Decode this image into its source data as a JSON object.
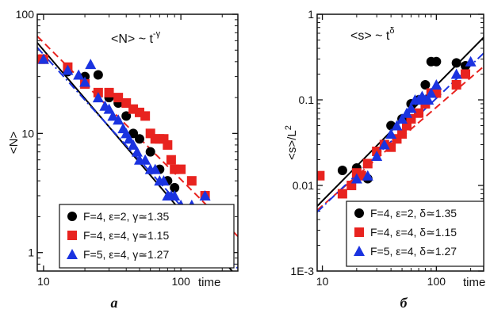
{
  "chart_data": [
    {
      "type": "scatter",
      "panel_label": "a",
      "xlabel": "time",
      "ylabel": "<N>",
      "xscale": "log",
      "yscale": "log",
      "xlim": [
        9,
        260
      ],
      "ylim": [
        0.7,
        100
      ],
      "xticks": [
        {
          "v": 10,
          "t": "10"
        },
        {
          "v": 100,
          "t": "100"
        }
      ],
      "yticks": [
        {
          "v": 1,
          "t": "1"
        },
        {
          "v": 10,
          "t": "10"
        },
        {
          "v": 100,
          "t": "100"
        }
      ],
      "annotation": {
        "base": "<N> ~ t",
        "sup": "-γ"
      },
      "legend_position": "bottom-left",
      "series": [
        {
          "name": "F=4, ε=2, γ≃1.35",
          "color": "#000000",
          "marker": "circle",
          "points": [
            [
              15,
              33
            ],
            [
              20,
              30
            ],
            [
              25,
              31
            ],
            [
              30,
              20
            ],
            [
              35,
              18
            ],
            [
              40,
              14
            ],
            [
              45,
              10
            ],
            [
              50,
              9
            ],
            [
              60,
              7
            ],
            [
              70,
              5
            ],
            [
              80,
              4
            ],
            [
              90,
              3.5
            ],
            [
              100,
              2
            ],
            [
              150,
              2
            ]
          ]
        },
        {
          "name": "F=4, ε=4, γ≃1.15",
          "color": "#e8231f",
          "marker": "square",
          "points": [
            [
              9.5,
              42
            ],
            [
              10,
              42
            ],
            [
              15,
              36
            ],
            [
              20,
              26
            ],
            [
              25,
              22
            ],
            [
              30,
              22
            ],
            [
              35,
              20
            ],
            [
              40,
              18
            ],
            [
              45,
              16
            ],
            [
              50,
              15
            ],
            [
              55,
              14
            ],
            [
              60,
              10
            ],
            [
              65,
              9
            ],
            [
              70,
              9
            ],
            [
              75,
              9
            ],
            [
              80,
              8
            ],
            [
              85,
              6
            ],
            [
              90,
              5
            ],
            [
              100,
              5
            ],
            [
              120,
              4
            ],
            [
              150,
              3
            ]
          ]
        },
        {
          "name": "F=5, ε=4, γ≃1.27",
          "color": "#1a33e0",
          "marker": "triangle",
          "points": [
            [
              10,
              42
            ],
            [
              15,
              34
            ],
            [
              18,
              31
            ],
            [
              20,
              27
            ],
            [
              22,
              38
            ],
            [
              25,
              20
            ],
            [
              28,
              17
            ],
            [
              30,
              16
            ],
            [
              32,
              14
            ],
            [
              35,
              13
            ],
            [
              38,
              11
            ],
            [
              40,
              10
            ],
            [
              42,
              9
            ],
            [
              45,
              8
            ],
            [
              48,
              7
            ],
            [
              50,
              6
            ],
            [
              55,
              6
            ],
            [
              60,
              5
            ],
            [
              65,
              5
            ],
            [
              70,
              4
            ],
            [
              75,
              4
            ],
            [
              80,
              3
            ],
            [
              85,
              3
            ],
            [
              90,
              3
            ],
            [
              100,
              2.5
            ],
            [
              120,
              2.5
            ],
            [
              150,
              3
            ],
            [
              180,
              2
            ]
          ]
        }
      ],
      "fit_lines": [
        {
          "color": "#000000",
          "dash": "solid",
          "exponent": -1.35,
          "anchor": [
            10,
            50
          ]
        },
        {
          "color": "#e8231f",
          "dash": "dashed",
          "exponent": -1.15,
          "anchor": [
            10,
            58
          ]
        },
        {
          "color": "#1a33e0",
          "dash": "dashdot",
          "exponent": -1.27,
          "anchor": [
            10,
            46
          ]
        }
      ]
    },
    {
      "type": "scatter",
      "panel_label": "б",
      "xlabel": "time",
      "ylabel": "<s>/L",
      "ylabel_sup": "2",
      "xscale": "log",
      "yscale": "log",
      "xlim": [
        9,
        260
      ],
      "ylim": [
        0.001,
        1
      ],
      "xticks": [
        {
          "v": 10,
          "t": "10"
        },
        {
          "v": 100,
          "t": "100"
        }
      ],
      "yticks": [
        {
          "v": 0.001,
          "t": "1E-3"
        },
        {
          "v": 0.01,
          "t": "0.01"
        },
        {
          "v": 0.1,
          "t": "0.1"
        },
        {
          "v": 1,
          "t": "1"
        }
      ],
      "annotation": {
        "base": "<s> ~ t",
        "sup": "δ"
      },
      "legend_position": "bottom-right",
      "series": [
        {
          "name": "F=4, ε=2, δ≃1.35",
          "color": "#000000",
          "marker": "circle",
          "points": [
            [
              15,
              0.015
            ],
            [
              20,
              0.016
            ],
            [
              25,
              0.012
            ],
            [
              30,
              0.025
            ],
            [
              40,
              0.05
            ],
            [
              50,
              0.06
            ],
            [
              60,
              0.09
            ],
            [
              70,
              0.1
            ],
            [
              80,
              0.15
            ],
            [
              90,
              0.28
            ],
            [
              100,
              0.28
            ],
            [
              150,
              0.27
            ],
            [
              180,
              0.25
            ]
          ]
        },
        {
          "name": "F=4, ε=4, δ≃1.15",
          "color": "#e8231f",
          "marker": "square",
          "points": [
            [
              9.5,
              0.013
            ],
            [
              15,
              0.008
            ],
            [
              18,
              0.01
            ],
            [
              20,
              0.014
            ],
            [
              22,
              0.013
            ],
            [
              25,
              0.018
            ],
            [
              30,
              0.025
            ],
            [
              35,
              0.03
            ],
            [
              40,
              0.028
            ],
            [
              45,
              0.035
            ],
            [
              50,
              0.04
            ],
            [
              55,
              0.05
            ],
            [
              60,
              0.06
            ],
            [
              70,
              0.07
            ],
            [
              80,
              0.09
            ],
            [
              90,
              0.12
            ],
            [
              100,
              0.12
            ],
            [
              150,
              0.15
            ],
            [
              180,
              0.2
            ]
          ]
        },
        {
          "name": "F=5, ε=4, δ≃1.27",
          "color": "#1a33e0",
          "marker": "triangle",
          "points": [
            [
              20,
              0.012
            ],
            [
              25,
              0.013
            ],
            [
              30,
              0.022
            ],
            [
              35,
              0.03
            ],
            [
              40,
              0.04
            ],
            [
              45,
              0.05
            ],
            [
              50,
              0.06
            ],
            [
              55,
              0.07
            ],
            [
              60,
              0.08
            ],
            [
              65,
              0.1
            ],
            [
              70,
              0.1
            ],
            [
              75,
              0.11
            ],
            [
              80,
              0.1
            ],
            [
              85,
              0.1
            ],
            [
              90,
              0.12
            ],
            [
              100,
              0.15
            ],
            [
              150,
              0.2
            ],
            [
              200,
              0.28
            ]
          ]
        }
      ],
      "fit_lines": [
        {
          "color": "#000000",
          "dash": "solid",
          "exponent": 1.35,
          "anchor": [
            10,
            0.0066
          ]
        },
        {
          "color": "#e8231f",
          "dash": "dashed",
          "exponent": 1.15,
          "anchor": [
            10,
            0.0058
          ]
        },
        {
          "color": "#1a33e0",
          "dash": "dashdot",
          "exponent": 1.27,
          "anchor": [
            10,
            0.0056
          ]
        }
      ]
    }
  ]
}
